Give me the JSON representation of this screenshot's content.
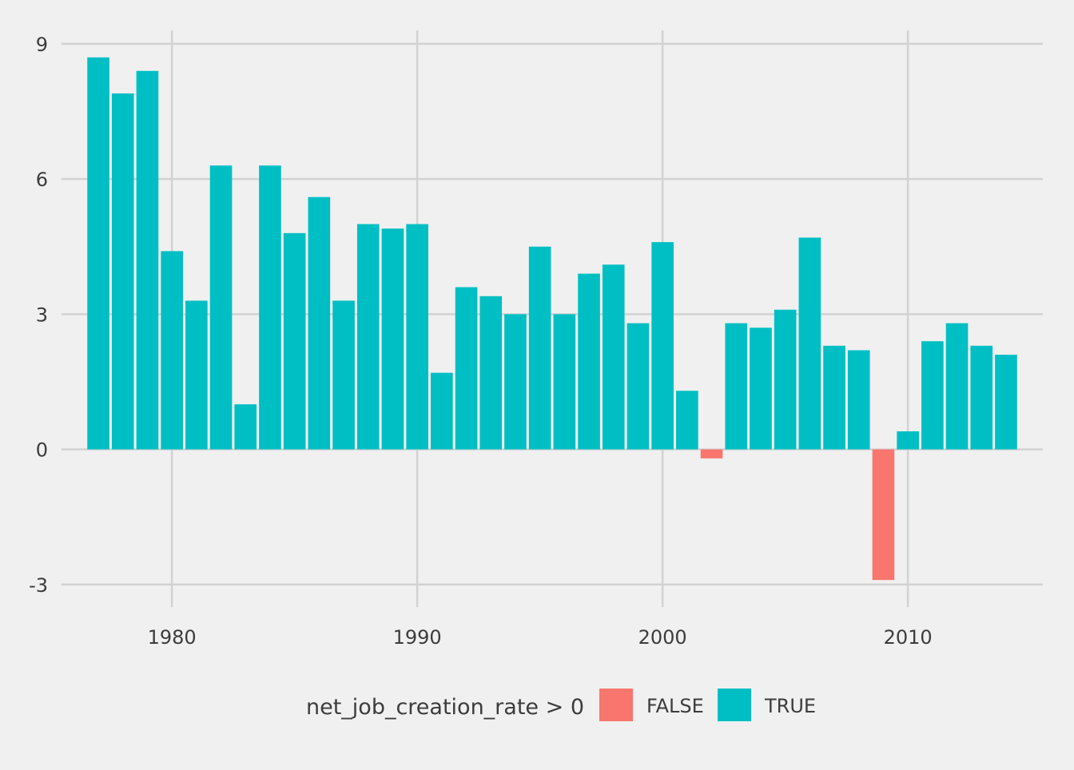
{
  "chart_data": {
    "type": "bar",
    "title": "",
    "xlabel": "",
    "ylabel": "",
    "x": [
      1977,
      1978,
      1979,
      1980,
      1981,
      1982,
      1983,
      1984,
      1985,
      1986,
      1987,
      1988,
      1989,
      1990,
      1991,
      1992,
      1993,
      1994,
      1995,
      1996,
      1997,
      1998,
      1999,
      2000,
      2001,
      2002,
      2003,
      2004,
      2005,
      2006,
      2007,
      2008,
      2009,
      2010,
      2011,
      2012,
      2013,
      2014
    ],
    "values": [
      8.7,
      7.9,
      8.4,
      4.4,
      3.3,
      6.3,
      1.0,
      6.3,
      4.8,
      5.6,
      3.3,
      5.0,
      4.9,
      5.0,
      1.7,
      3.6,
      3.4,
      3.0,
      4.5,
      3.0,
      3.9,
      4.1,
      2.8,
      4.6,
      1.3,
      -0.2,
      2.8,
      2.7,
      3.1,
      4.7,
      2.3,
      2.2,
      -2.9,
      0.4,
      2.4,
      2.8,
      2.3,
      2.1
    ],
    "ylim": [
      -3.5,
      9.3
    ],
    "xlim": [
      1975.5,
      2015.5
    ],
    "y_ticks": [
      -3,
      0,
      3,
      6,
      9
    ],
    "y_tick_labels": [
      "-3",
      "0",
      "3",
      "6",
      "9"
    ],
    "x_ticks": [
      1980,
      1990,
      2000,
      2010
    ],
    "x_tick_labels": [
      "1980",
      "1990",
      "2000",
      "2010"
    ],
    "grid": true,
    "legend": {
      "title": "net_job_creation_rate > 0",
      "position": "bottom",
      "entries": [
        {
          "label": "FALSE",
          "color": "#f8766d"
        },
        {
          "label": "TRUE",
          "color": "#00bfc4"
        }
      ]
    },
    "colors": {
      "background": "#f0f0f0",
      "grid": "#d2d2d2",
      "text": "#3c3c3c",
      "positive": "#00bfc4",
      "negative": "#f8766d"
    }
  }
}
